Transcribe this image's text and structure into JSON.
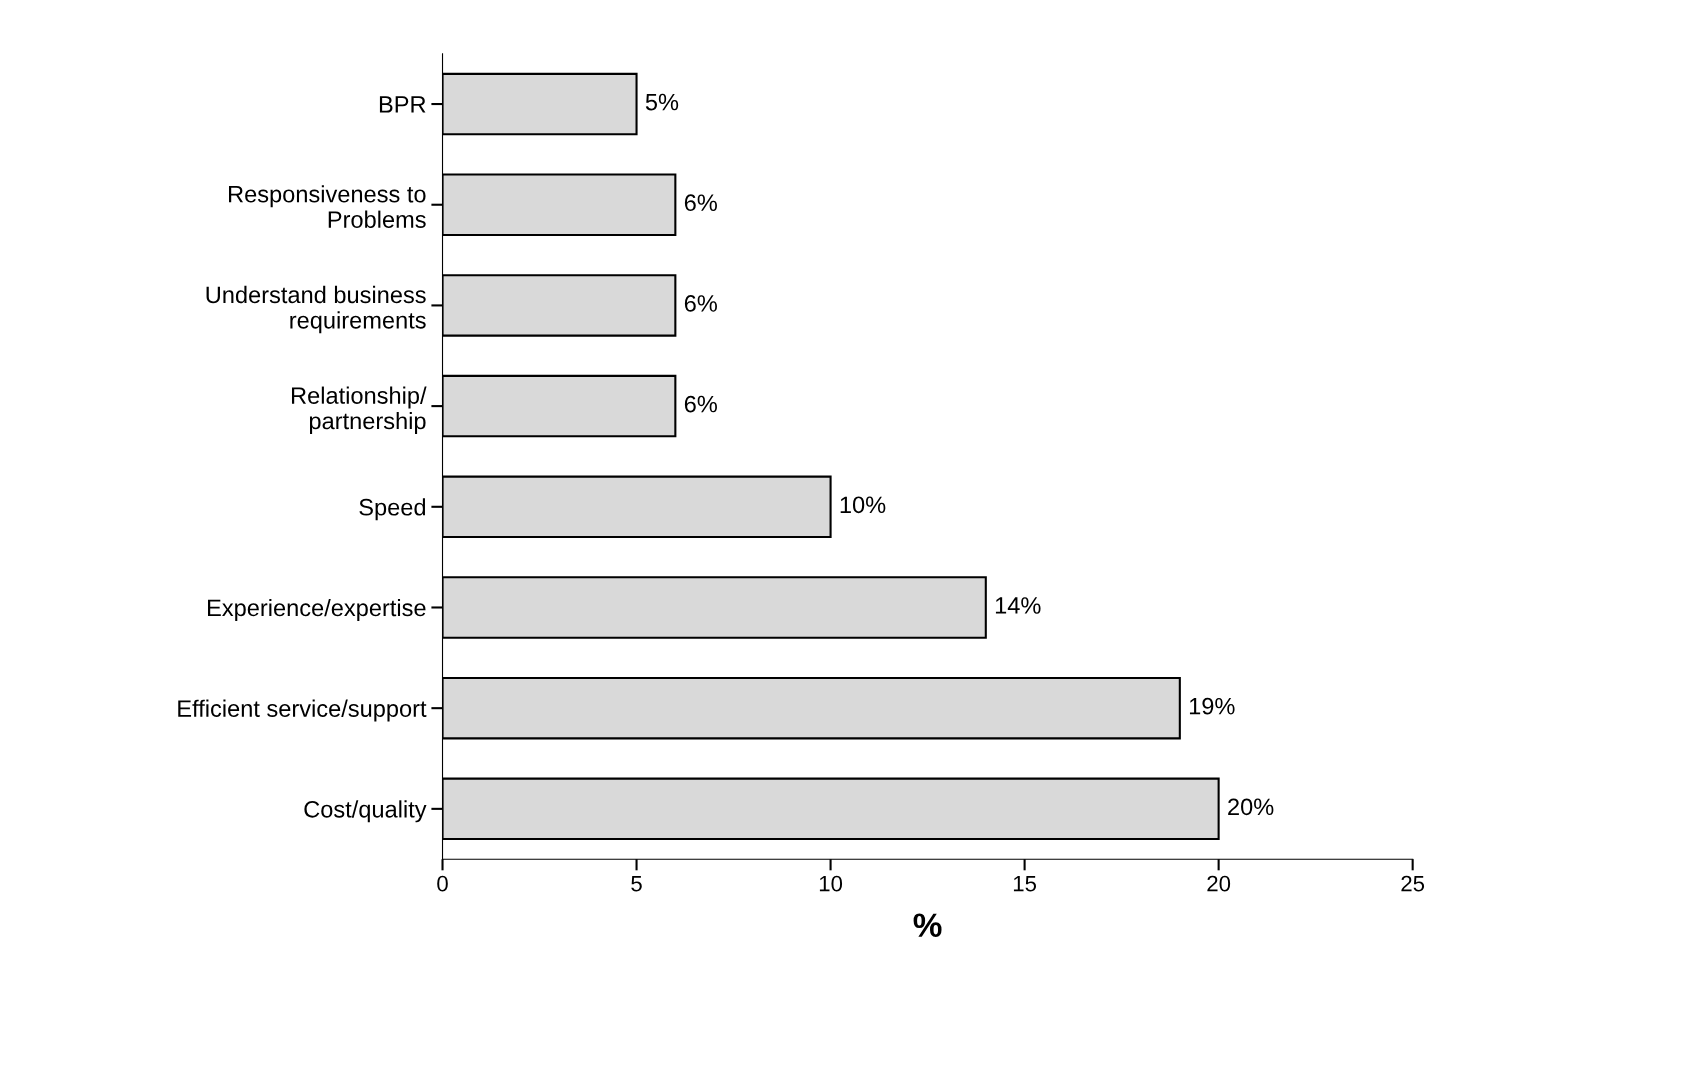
{
  "chart_data": {
    "type": "bar",
    "orientation": "horizontal",
    "xlabel": "%",
    "categories": [
      "BPR",
      "Responsiveness to\nProblems",
      "Understand business\nrequirements",
      "Relationship/\npartnership",
      "Speed",
      "Experience/expertise",
      "Efficient service/support",
      "Cost/quality"
    ],
    "values": [
      5,
      6,
      6,
      6,
      10,
      14,
      19,
      20
    ],
    "value_labels": [
      "5%",
      "6%",
      "6%",
      "6%",
      "10%",
      "14%",
      "19%",
      "20%"
    ],
    "color": "#d9d9d9",
    "xlim": [
      0,
      25
    ],
    "xticks": [
      0,
      5,
      10,
      15,
      20,
      25
    ],
    "grid": false
  }
}
